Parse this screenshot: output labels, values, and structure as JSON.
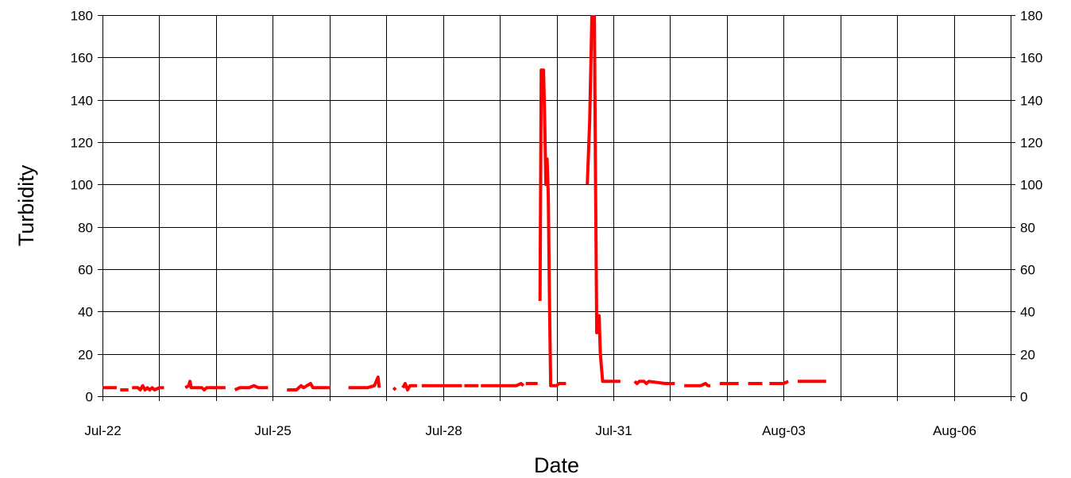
{
  "chart_data": {
    "type": "line",
    "xlabel": "Date",
    "ylabel": "Turbidity",
    "x_axis": {
      "range": [
        "2000-07-22",
        "2000-08-07"
      ],
      "tick_dates": [
        "2000-07-22",
        "2000-07-23",
        "2000-07-24",
        "2000-07-25",
        "2000-07-26",
        "2000-07-27",
        "2000-07-28",
        "2000-07-29",
        "2000-07-30",
        "2000-07-31",
        "2000-08-01",
        "2000-08-02",
        "2000-08-03",
        "2000-08-04",
        "2000-08-05",
        "2000-08-06",
        "2000-08-07"
      ],
      "tick_labels": [
        "Jul-22",
        "",
        "",
        "Jul-25",
        "",
        "",
        "Jul-28",
        "",
        "",
        "Jul-31",
        "",
        "",
        "Aug-03",
        "",
        "",
        "Aug-06",
        ""
      ]
    },
    "y_axis": {
      "range": [
        0,
        180
      ],
      "ticks": [
        0,
        20,
        40,
        60,
        80,
        100,
        120,
        140,
        160,
        180
      ],
      "secondary_axis": true
    },
    "grid": true,
    "series_color": "#ff0000",
    "segments": [
      [
        [
          "2000-07-22 00:00",
          4
        ],
        [
          "2000-07-22 06:00",
          4
        ]
      ],
      [
        [
          "2000-07-22 07:30",
          3
        ],
        [
          "2000-07-22 11:00",
          3
        ]
      ],
      [
        [
          "2000-07-22 12:30",
          4
        ],
        [
          "2000-07-22 15:00",
          4
        ],
        [
          "2000-07-22 16:00",
          3
        ],
        [
          "2000-07-22 17:00",
          5
        ],
        [
          "2000-07-22 18:00",
          3
        ],
        [
          "2000-07-22 19:00",
          4
        ],
        [
          "2000-07-22 20:00",
          3
        ],
        [
          "2000-07-22 21:00",
          4
        ],
        [
          "2000-07-22 22:00",
          3
        ],
        [
          "2000-07-23 00:00",
          4
        ],
        [
          "2000-07-23 02:00",
          4
        ]
      ],
      [
        [
          "2000-07-23 11:00",
          4
        ],
        [
          "2000-07-23 12:30",
          5
        ],
        [
          "2000-07-23 13:00",
          7
        ],
        [
          "2000-07-23 13:30",
          4
        ],
        [
          "2000-07-23 18:00",
          4
        ],
        [
          "2000-07-23 19:00",
          3
        ],
        [
          "2000-07-23 20:00",
          4
        ],
        [
          "2000-07-24 04:00",
          4
        ]
      ],
      [
        [
          "2000-07-24 08:00",
          3
        ],
        [
          "2000-07-24 10:00",
          4
        ],
        [
          "2000-07-24 14:00",
          4
        ],
        [
          "2000-07-24 16:00",
          5
        ],
        [
          "2000-07-24 18:00",
          4
        ],
        [
          "2000-07-24 22:00",
          4
        ]
      ],
      [
        [
          "2000-07-25 06:00",
          3
        ],
        [
          "2000-07-25 10:00",
          3
        ],
        [
          "2000-07-25 12:00",
          5
        ],
        [
          "2000-07-25 13:00",
          4
        ],
        [
          "2000-07-25 16:00",
          6
        ],
        [
          "2000-07-25 17:00",
          4
        ],
        [
          "2000-07-26 00:00",
          4
        ]
      ],
      [
        [
          "2000-07-26 08:00",
          4
        ],
        [
          "2000-07-26 16:00",
          4
        ],
        [
          "2000-07-26 19:00",
          5
        ],
        [
          "2000-07-26 20:30",
          9
        ],
        [
          "2000-07-26 21:00",
          4
        ]
      ],
      [
        [
          "2000-07-27 03:00",
          4
        ],
        [
          "2000-07-27 04:00",
          3
        ]
      ],
      [
        [
          "2000-07-27 07:00",
          4
        ],
        [
          "2000-07-27 08:00",
          6
        ],
        [
          "2000-07-27 09:00",
          3
        ],
        [
          "2000-07-27 10:00",
          5
        ],
        [
          "2000-07-27 13:00",
          5
        ]
      ],
      [
        [
          "2000-07-27 15:00",
          5
        ],
        [
          "2000-07-28 00:00",
          5
        ],
        [
          "2000-07-28 08:00",
          5
        ]
      ],
      [
        [
          "2000-07-28 09:00",
          5
        ],
        [
          "2000-07-28 15:00",
          5
        ]
      ],
      [
        [
          "2000-07-28 16:00",
          5
        ],
        [
          "2000-07-29 07:00",
          5
        ],
        [
          "2000-07-29 09:00",
          6
        ],
        [
          "2000-07-29 10:00",
          5
        ]
      ],
      [
        [
          "2000-07-29 11:00",
          6
        ],
        [
          "2000-07-29 16:00",
          6
        ]
      ],
      [
        [
          "2000-07-29 17:00",
          45
        ],
        [
          "2000-07-29 17:30",
          154
        ],
        [
          "2000-07-29 18:30",
          154
        ],
        [
          "2000-07-29 19:00",
          130
        ],
        [
          "2000-07-29 19:30",
          100
        ],
        [
          "2000-07-29 20:00",
          112
        ],
        [
          "2000-07-29 20:30",
          95
        ],
        [
          "2000-07-29 21:00",
          45
        ],
        [
          "2000-07-29 21:30",
          5
        ],
        [
          "2000-07-30 00:00",
          5
        ],
        [
          "2000-07-30 01:00",
          6
        ],
        [
          "2000-07-30 04:00",
          6
        ]
      ],
      [
        [
          "2000-07-30 13:00",
          100
        ],
        [
          "2000-07-30 14:00",
          130
        ],
        [
          "2000-07-30 15:00",
          182
        ]
      ],
      [
        [
          "2000-07-30 16:00",
          182
        ],
        [
          "2000-07-30 16:30",
          100
        ],
        [
          "2000-07-30 17:00",
          30
        ],
        [
          "2000-07-30 17:30",
          38
        ],
        [
          "2000-07-30 18:00",
          38
        ],
        [
          "2000-07-30 18:30",
          20
        ],
        [
          "2000-07-30 19:30",
          7
        ],
        [
          "2000-07-31 03:00",
          7
        ]
      ],
      [
        [
          "2000-07-31 09:00",
          7
        ],
        [
          "2000-07-31 10:00",
          6
        ],
        [
          "2000-07-31 11:00",
          7
        ],
        [
          "2000-07-31 13:00",
          7
        ],
        [
          "2000-07-31 14:00",
          6
        ],
        [
          "2000-07-31 15:00",
          7
        ],
        [
          "2000-07-31 22:00",
          6
        ],
        [
          "2000-08-01 02:00",
          6
        ]
      ],
      [
        [
          "2000-08-01 06:00",
          5
        ],
        [
          "2000-08-01 13:00",
          5
        ],
        [
          "2000-08-01 15:00",
          6
        ],
        [
          "2000-08-01 16:00",
          5
        ],
        [
          "2000-08-01 17:00",
          5
        ]
      ],
      [
        [
          "2000-08-01 21:00",
          6
        ],
        [
          "2000-08-02 05:00",
          6
        ]
      ],
      [
        [
          "2000-08-02 09:00",
          6
        ],
        [
          "2000-08-02 15:00",
          6
        ]
      ],
      [
        [
          "2000-08-02 18:00",
          6
        ],
        [
          "2000-08-03 00:00",
          6
        ],
        [
          "2000-08-03 02:00",
          7
        ]
      ],
      [
        [
          "2000-08-03 06:00",
          7
        ],
        [
          "2000-08-03 18:00",
          7
        ]
      ]
    ]
  }
}
